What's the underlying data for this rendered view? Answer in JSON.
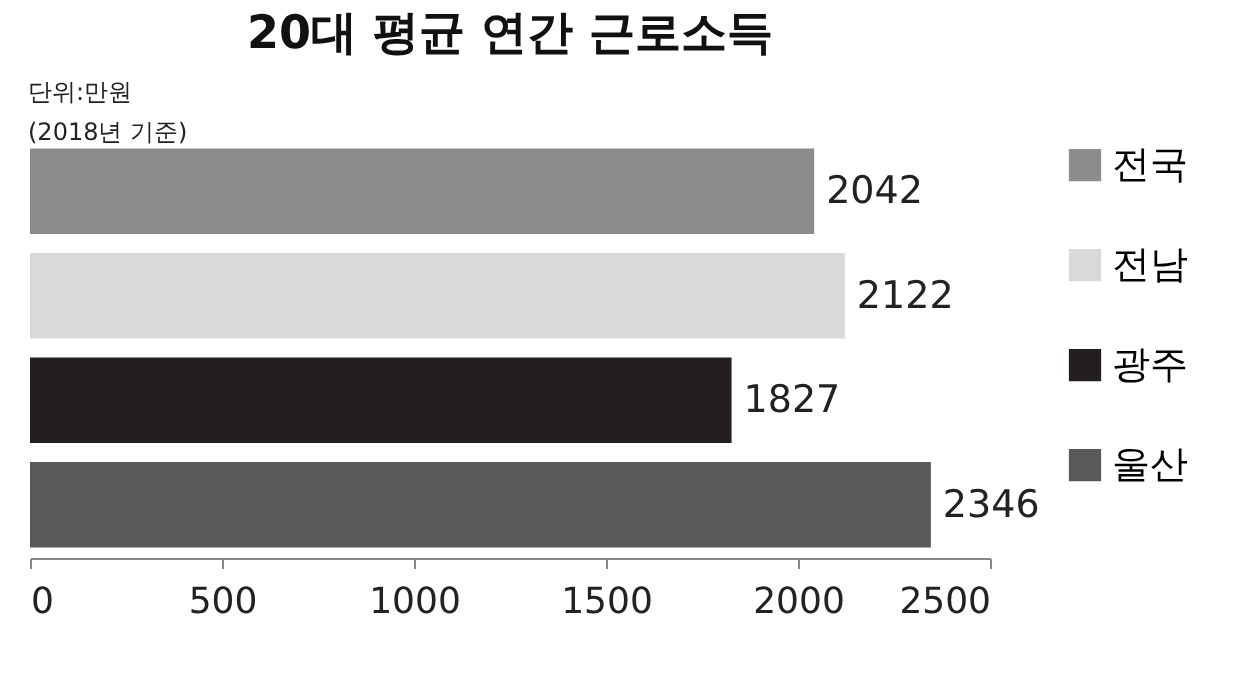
{
  "chart_data": {
    "type": "bar",
    "orientation": "horizontal",
    "title": "20대 평균 연간 근로소득",
    "annotations": [
      "단위:만원",
      "(2018년 기준)"
    ],
    "categories": [
      null
    ],
    "series": [
      {
        "name": "전국",
        "color": "#8c8c8c",
        "values": [
          2042
        ]
      },
      {
        "name": "전남",
        "color": "#d9d9d9",
        "values": [
          2122
        ]
      },
      {
        "name": "광주",
        "color": "#231f20",
        "values": [
          1827
        ]
      },
      {
        "name": "울산",
        "color": "#595959",
        "values": [
          2346
        ]
      }
    ],
    "xlim": [
      0,
      2500
    ],
    "xticks": [
      0,
      500,
      1000,
      1500,
      2000,
      2500
    ],
    "data_labels": true,
    "legend": "right",
    "tick_labels": "x",
    "grid": false
  }
}
